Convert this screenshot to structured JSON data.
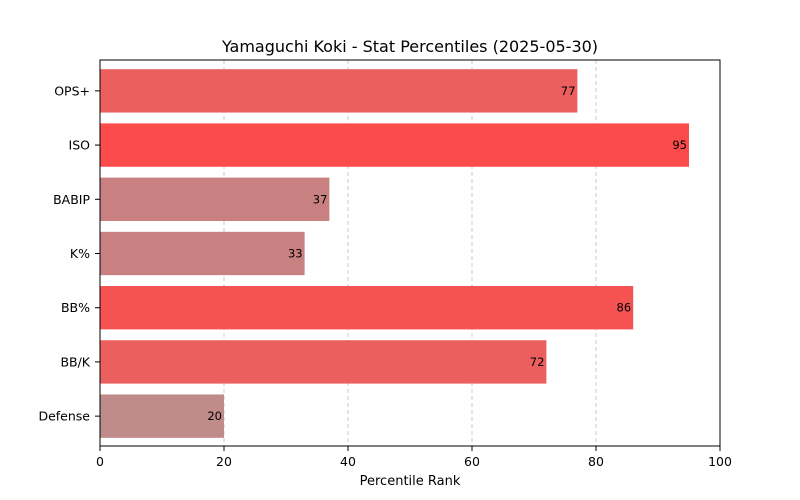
{
  "chart_data": {
    "type": "bar",
    "orientation": "horizontal",
    "title": "Yamaguchi Koki - Stat Percentiles (2025-05-30)",
    "xlabel": "Percentile Rank",
    "ylabel": "",
    "xlim": [
      0,
      100
    ],
    "xticks": [
      0,
      20,
      40,
      60,
      80,
      100
    ],
    "grid": "x-dashed",
    "categories": [
      "OPS+",
      "ISO",
      "BABIP",
      "K%",
      "BB%",
      "BB/K",
      "Defense"
    ],
    "values": [
      77,
      95,
      37,
      33,
      86,
      72,
      20
    ],
    "colors": [
      "#eb605e",
      "#fc4b4b",
      "#c98080",
      "#c98080",
      "#f55252",
      "#eb605e",
      "#c08b8b"
    ]
  }
}
